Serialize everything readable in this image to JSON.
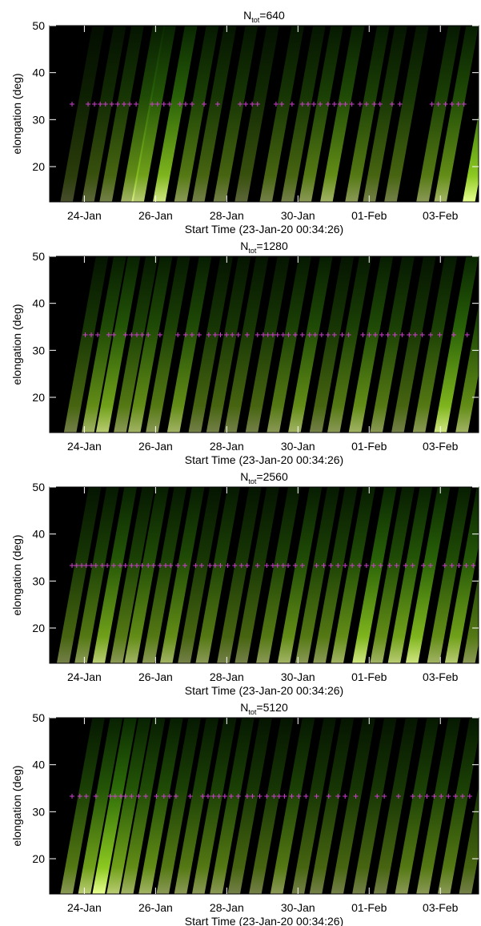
{
  "chart_data": [
    {
      "type": "heatmap",
      "title": {
        "main": "N",
        "sub": "tot",
        "rest": "=640"
      },
      "xlabel": "Start Time (23-Jan-20 00:34:26)",
      "ylabel": "elongation (deg)",
      "xlim": [
        0,
        12.05
      ],
      "ylim": [
        12.5,
        50
      ],
      "yticks": [
        20,
        30,
        40,
        50
      ],
      "xticks": [
        {
          "value": 0.976,
          "label": "24-Jan"
        },
        {
          "value": 2.976,
          "label": "26-Jan"
        },
        {
          "value": 4.976,
          "label": "28-Jan"
        },
        {
          "value": 6.976,
          "label": "30-Jan"
        },
        {
          "value": 8.976,
          "label": "01-Feb"
        },
        {
          "value": 10.976,
          "label": "03-Feb"
        }
      ],
      "streak_x": [
        0.3,
        0.9,
        1.4,
        2.0,
        2.3,
        2.9,
        3.5,
        4.0,
        4.6,
        5.2,
        5.9,
        6.5,
        7.0,
        7.6,
        8.3,
        8.8,
        9.4,
        10.3,
        10.8,
        11.6
      ],
      "streak_intensity": [
        0.3,
        0.4,
        0.5,
        0.7,
        0.8,
        0.9,
        0.6,
        0.5,
        0.5,
        0.4,
        0.5,
        0.5,
        0.6,
        0.7,
        0.6,
        0.5,
        0.5,
        0.6,
        0.7,
        1.0
      ],
      "markers": {
        "color": "#d040d0",
        "elongation": 33.3,
        "x": [
          0.63,
          1.08,
          1.26,
          1.42,
          1.57,
          1.75,
          1.91,
          2.09,
          2.25,
          2.43,
          2.88,
          3.03,
          3.21,
          3.37,
          3.66,
          3.82,
          4.0,
          4.34,
          4.72,
          5.35,
          5.51,
          5.69,
          5.84,
          6.36,
          6.52,
          6.81,
          7.1,
          7.26,
          7.42,
          7.6,
          7.82,
          8.0,
          8.16,
          8.31,
          8.49,
          8.72,
          8.9,
          9.12,
          9.28,
          9.62,
          9.84,
          10.74,
          10.92,
          11.12,
          11.3,
          11.48,
          11.64
        ]
      }
    },
    {
      "type": "heatmap",
      "title": {
        "main": "N",
        "sub": "tot",
        "rest": "=1280"
      },
      "xlabel": "Start Time (23-Jan-20 00:34:26)",
      "ylabel": "elongation (deg)",
      "xlim": [
        0,
        12.05
      ],
      "ylim": [
        12.5,
        50
      ],
      "yticks": [
        20,
        30,
        40,
        50
      ],
      "xticks": [
        {
          "value": 0.976,
          "label": "24-Jan"
        },
        {
          "value": 2.976,
          "label": "26-Jan"
        },
        {
          "value": 4.976,
          "label": "28-Jan"
        },
        {
          "value": 6.976,
          "label": "30-Jan"
        },
        {
          "value": 8.976,
          "label": "01-Feb"
        },
        {
          "value": 10.976,
          "label": "03-Feb"
        }
      ],
      "streak_x": [
        0.4,
        0.9,
        1.3,
        1.8,
        2.2,
        2.7,
        3.3,
        3.9,
        4.4,
        4.9,
        5.5,
        6.1,
        6.7,
        7.3,
        7.8,
        8.4,
        9.0,
        9.6,
        10.2,
        10.8,
        11.4
      ],
      "streak_intensity": [
        0.5,
        0.7,
        0.8,
        0.6,
        0.7,
        0.6,
        0.7,
        0.5,
        0.5,
        0.5,
        0.5,
        0.6,
        0.7,
        0.5,
        0.6,
        0.7,
        0.6,
        0.5,
        0.6,
        0.9,
        0.7
      ],
      "markers": {
        "color": "#d040d0",
        "elongation": 33.3,
        "x": [
          1.0,
          1.17,
          1.35,
          1.66,
          1.8,
          2.13,
          2.3,
          2.45,
          2.6,
          2.77,
          3.1,
          3.6,
          3.82,
          4.0,
          4.2,
          4.47,
          4.65,
          4.8,
          4.97,
          5.13,
          5.3,
          5.55,
          5.84,
          6.0,
          6.13,
          6.27,
          6.4,
          6.56,
          6.71,
          6.9,
          7.1,
          7.3,
          7.46,
          7.64,
          7.82,
          8.0,
          8.22,
          8.4,
          8.8,
          8.98,
          9.15,
          9.33,
          9.5,
          9.7,
          9.9,
          10.1,
          10.27,
          10.47,
          10.7,
          10.96,
          11.35,
          11.73
        ]
      }
    },
    {
      "type": "heatmap",
      "title": {
        "main": "N",
        "sub": "tot",
        "rest": "=2560"
      },
      "xlabel": "Start Time (23-Jan-20 00:34:26)",
      "ylabel": "elongation (deg)",
      "xlim": [
        0,
        12.05
      ],
      "ylim": [
        12.5,
        50
      ],
      "yticks": [
        20,
        30,
        40,
        50
      ],
      "xticks": [
        {
          "value": 0.976,
          "label": "24-Jan"
        },
        {
          "value": 2.976,
          "label": "26-Jan"
        },
        {
          "value": 4.976,
          "label": "28-Jan"
        },
        {
          "value": 6.976,
          "label": "30-Jan"
        },
        {
          "value": 8.976,
          "label": "01-Feb"
        },
        {
          "value": 10.976,
          "label": "03-Feb"
        }
      ],
      "streak_x": [
        0.2,
        0.7,
        1.2,
        1.7,
        2.1,
        2.6,
        3.1,
        3.6,
        4.1,
        4.7,
        5.2,
        5.8,
        6.4,
        6.9,
        7.4,
        7.9,
        8.5,
        9.0,
        9.5,
        10.0,
        10.6,
        11.1,
        11.6
      ],
      "streak_intensity": [
        0.5,
        0.6,
        0.8,
        0.6,
        0.7,
        0.6,
        0.7,
        0.5,
        0.6,
        0.5,
        0.5,
        0.6,
        0.7,
        0.6,
        0.6,
        0.7,
        0.9,
        0.7,
        0.8,
        0.9,
        0.7,
        0.8,
        0.6
      ],
      "markers": {
        "color": "#d040d0",
        "elongation": 33.3,
        "x": [
          0.63,
          0.76,
          0.9,
          1.03,
          1.17,
          1.3,
          1.48,
          1.62,
          1.8,
          1.98,
          2.13,
          2.3,
          2.45,
          2.6,
          2.77,
          2.92,
          3.1,
          3.26,
          3.4,
          3.6,
          3.8,
          4.1,
          4.27,
          4.5,
          4.65,
          4.8,
          5.0,
          5.2,
          5.39,
          5.55,
          5.84,
          6.1,
          6.27,
          6.4,
          6.56,
          6.7,
          6.9,
          7.1,
          7.5,
          7.7,
          7.9,
          8.1,
          8.3,
          8.5,
          8.7,
          8.9,
          9.1,
          9.3,
          9.55,
          9.75,
          10.0,
          10.2,
          10.5,
          10.7,
          11.1,
          11.3,
          11.5,
          11.7,
          11.9
        ]
      }
    },
    {
      "type": "heatmap",
      "title": {
        "main": "N",
        "sub": "tot",
        "rest": "=5120"
      },
      "xlabel": "Start Time (23-Jan-20 00:34:26)",
      "ylabel": "elongation (deg)",
      "xlim": [
        0,
        12.05
      ],
      "ylim": [
        12.5,
        50
      ],
      "yticks": [
        20,
        30,
        40,
        50
      ],
      "xticks": [
        {
          "value": 0.976,
          "label": "24-Jan"
        },
        {
          "value": 2.976,
          "label": "26-Jan"
        },
        {
          "value": 4.976,
          "label": "28-Jan"
        },
        {
          "value": 6.976,
          "label": "30-Jan"
        },
        {
          "value": 8.976,
          "label": "01-Feb"
        },
        {
          "value": 10.976,
          "label": "03-Feb"
        }
      ],
      "streak_x": [
        0.3,
        0.8,
        1.2,
        1.6,
        2.0,
        2.5,
        3.0,
        3.5,
        4.0,
        4.5,
        5.0,
        5.6,
        6.2,
        6.8,
        7.3,
        7.9,
        8.5,
        9.1,
        9.7,
        10.3,
        10.9,
        11.5
      ],
      "streak_intensity": [
        0.6,
        0.8,
        1.0,
        0.8,
        0.7,
        0.7,
        0.6,
        0.6,
        0.6,
        0.6,
        0.5,
        0.5,
        0.6,
        0.5,
        0.5,
        0.5,
        0.5,
        0.5,
        0.6,
        0.6,
        0.6,
        0.5
      ],
      "markers": {
        "color": "#d040d0",
        "elongation": 33.3,
        "x": [
          0.63,
          0.85,
          1.03,
          1.3,
          1.7,
          1.84,
          2.0,
          2.13,
          2.3,
          2.5,
          2.7,
          3.0,
          3.21,
          3.37,
          3.55,
          3.95,
          4.3,
          4.45,
          4.6,
          4.76,
          4.92,
          5.1,
          5.3,
          5.55,
          5.7,
          5.9,
          6.1,
          6.3,
          6.45,
          6.6,
          6.8,
          7.0,
          7.2,
          7.5,
          7.84,
          8.1,
          8.3,
          8.6,
          9.2,
          9.4,
          9.8,
          10.2,
          10.4,
          10.6,
          10.8,
          11.0,
          11.2,
          11.4,
          11.6,
          11.8
        ]
      }
    }
  ]
}
